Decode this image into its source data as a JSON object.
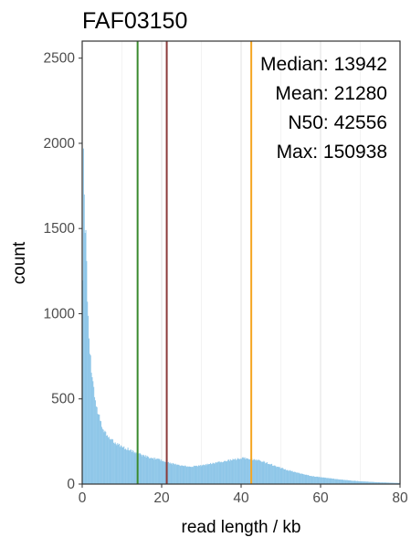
{
  "chart_data": {
    "type": "bar",
    "title": "FAF03150",
    "xlabel": "read length / kb",
    "ylabel": "count",
    "xlim": [
      0,
      80
    ],
    "ylim": [
      0,
      2600
    ],
    "x_ticks": [
      0,
      20,
      40,
      60,
      80
    ],
    "y_ticks": [
      0,
      500,
      1000,
      1500,
      2000,
      2500
    ],
    "x_minor_gridlines": [
      10,
      30,
      50,
      70
    ],
    "grid": true,
    "bin_width_kb": 0.2,
    "bar_color": "#8ec6e8",
    "histogram_profile": {
      "x": [
        0,
        0.2,
        0.4,
        0.6,
        0.8,
        1,
        1.2,
        1.4,
        1.7,
        2,
        2.5,
        3,
        3.5,
        4,
        5,
        6,
        7,
        8,
        10,
        12,
        14,
        16,
        18,
        20,
        22,
        24,
        26,
        28,
        30,
        32,
        34,
        36,
        38,
        40,
        41,
        42,
        43,
        44,
        46,
        48,
        50,
        52,
        55,
        58,
        60,
        63,
        66,
        70,
        75,
        80
      ],
      "y": [
        300,
        2000,
        1870,
        1600,
        1480,
        1380,
        1220,
        1020,
        880,
        760,
        630,
        545,
        470,
        420,
        340,
        295,
        265,
        245,
        220,
        200,
        180,
        162,
        150,
        140,
        125,
        112,
        105,
        105,
        110,
        118,
        125,
        135,
        145,
        150,
        152,
        150,
        145,
        140,
        128,
        112,
        95,
        80,
        62,
        46,
        40,
        32,
        24,
        16,
        10,
        6
      ]
    },
    "vlines": [
      {
        "label": "Median",
        "x": 13.942,
        "color": "#3a8a2e"
      },
      {
        "label": "Mean",
        "x": 21.28,
        "color": "#8b3a3a"
      },
      {
        "label": "N50",
        "x": 42.556,
        "color": "#f5a623"
      }
    ],
    "annotations": [
      {
        "label": "Median:",
        "value": "13942"
      },
      {
        "label": "Mean:",
        "value": "21280"
      },
      {
        "label": "N50:",
        "value": "42556"
      },
      {
        "label": "Max:",
        "value": "150938"
      }
    ]
  }
}
